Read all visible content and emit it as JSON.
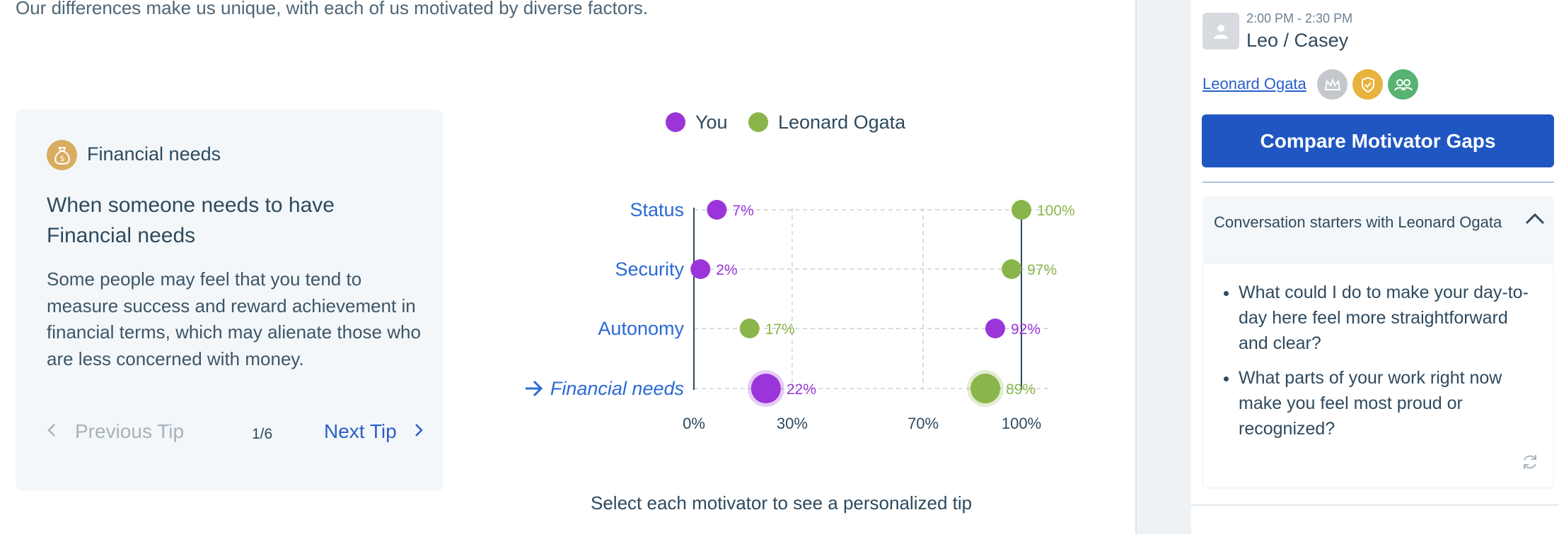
{
  "intro_text": "Our differences make us unique, with each of us motivated by diverse factors.",
  "tip": {
    "category": "Financial needs",
    "icon": "money-bag-icon",
    "title": "When someone needs to have Financial needs",
    "body": "Some people may feel that you tend to measure success and reward achievement in financial terms, which may alienate those who are less concerned with money.",
    "prev_label": "Previous Tip",
    "counter": "1/6",
    "next_label": "Next Tip"
  },
  "chart_data": {
    "type": "scatter",
    "legend_position": "top",
    "series": [
      {
        "name": "You",
        "color": "#9b35d9",
        "values": [
          7,
          2,
          92,
          22
        ],
        "labels": [
          "7%",
          "2%",
          "92%",
          "22%"
        ]
      },
      {
        "name": "Leonard Ogata",
        "color": "#8ab54a",
        "values": [
          100,
          97,
          17,
          89
        ],
        "labels": [
          "100%",
          "97%",
          "17%",
          "89%"
        ]
      }
    ],
    "categories": [
      "Status",
      "Security",
      "Autonomy",
      "Financial needs"
    ],
    "selected_category": "Financial needs",
    "x_ticks": [
      "0%",
      "30%",
      "70%",
      "100%"
    ],
    "x_tick_values": [
      0,
      30,
      70,
      100
    ],
    "xlim": [
      0,
      100
    ],
    "grid": true
  },
  "caption": "Select each motivator to see a personalized tip",
  "sidebar": {
    "time": "2:00 PM - 2:30 PM",
    "meeting_title": "Leo / Casey",
    "person_link": "Leonard Ogata",
    "badges": [
      {
        "icon": "crown-icon",
        "color": "#c4c7cb"
      },
      {
        "icon": "shield-check-icon",
        "color": "#e8b23e"
      },
      {
        "icon": "people-icon",
        "color": "#58b272"
      }
    ],
    "compare_button": "Compare Motivator Gaps",
    "conversation_header": "Conversation starters with Leonard Ogata",
    "conversation_items": [
      "What could I do to make your day-to-day here feel more straightforward and clear?",
      "What parts of your work right now make you feel most proud or recognized?"
    ]
  }
}
